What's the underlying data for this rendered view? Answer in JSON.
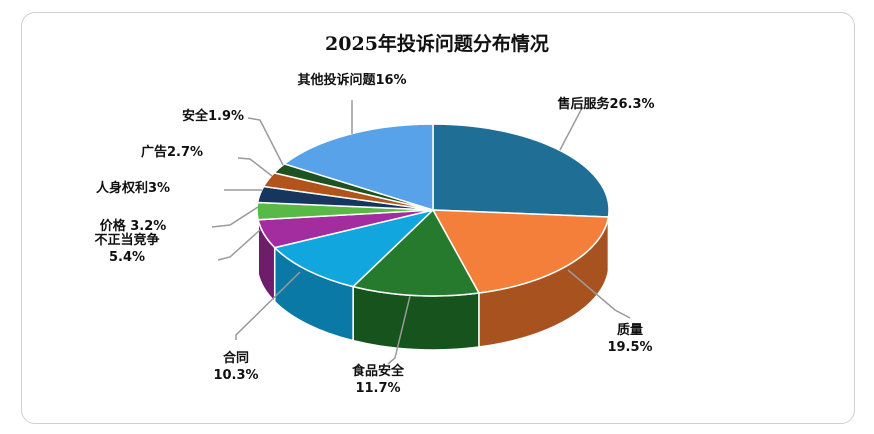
{
  "chart_data": {
    "type": "pie",
    "style": "3d",
    "title": "2025年投诉问题分布情况",
    "slices": [
      {
        "name": "售后服务",
        "value": 26.3,
        "label_lines": [
          "售后服务26.3%"
        ],
        "color": "#1f6e96",
        "side": "#16506d"
      },
      {
        "name": "质量",
        "value": 19.5,
        "label_lines": [
          "质量",
          "19.5%"
        ],
        "color": "#f47f3a",
        "side": "#a8531f"
      },
      {
        "name": "食品安全",
        "value": 11.7,
        "label_lines": [
          "食品安全",
          "11.7%"
        ],
        "color": "#257a2d",
        "side": "#17541d"
      },
      {
        "name": "合同",
        "value": 10.3,
        "label_lines": [
          "合同",
          "10.3%"
        ],
        "color": "#12a6de",
        "side": "#0b79a6"
      },
      {
        "name": "不正当竞争",
        "value": 5.4,
        "label_lines": [
          "不正当竞争",
          "5.4%"
        ],
        "color": "#a32c9f",
        "side": "#701c6d"
      },
      {
        "name": "价格",
        "value": 3.2,
        "label_lines": [
          "价格 3.2%"
        ],
        "color": "#58b947",
        "side": "#3c852f"
      },
      {
        "name": "人身权利",
        "value": 3,
        "label_lines": [
          "人身权利3%"
        ],
        "color": "#17365d",
        "side": "#0e2340"
      },
      {
        "name": "广告",
        "value": 2.7,
        "label_lines": [
          "广告2.7%"
        ],
        "color": "#b2531b",
        "side": "#7d3812"
      },
      {
        "name": "安全",
        "value": 1.9,
        "label_lines": [
          "安全1.9%"
        ],
        "color": "#1e5220",
        "side": "#133615"
      },
      {
        "name": "其他投诉问题",
        "value": 16,
        "label_lines": [
          "其他投诉问题16%"
        ],
        "color": "#57a2e8",
        "side": "#3976b0"
      }
    ]
  }
}
